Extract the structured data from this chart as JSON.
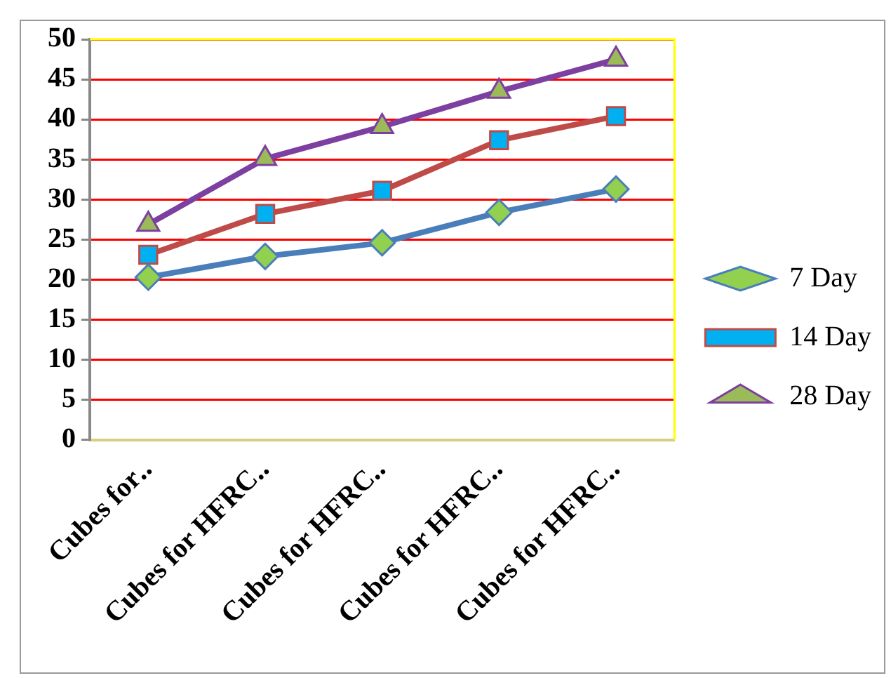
{
  "chart_data": {
    "type": "line",
    "categories": [
      "Cubes for‥",
      "Cubes for HFRC‥",
      "Cubes for HFRC‥",
      "Cubes for HFRC‥",
      "Cubes for HFRC‥"
    ],
    "series": [
      {
        "name": "7 Day",
        "color": "#4a7ebb",
        "marker": "diamond",
        "values": [
          20.3,
          22.9,
          24.6,
          28.4,
          31.3
        ]
      },
      {
        "name": "14 Day",
        "color": "#be4b48",
        "marker": "square",
        "values": [
          23.1,
          28.2,
          31.1,
          37.4,
          40.4
        ]
      },
      {
        "name": "28 Day",
        "color": "#7d3fa0",
        "marker": "triangle",
        "values": [
          26.9,
          35.1,
          39.1,
          43.5,
          47.5
        ]
      }
    ],
    "ylim": [
      0,
      50
    ],
    "yticks": [
      0,
      5,
      10,
      15,
      20,
      25,
      30,
      35,
      40,
      45,
      50
    ],
    "grid": "y",
    "legend": "right"
  }
}
